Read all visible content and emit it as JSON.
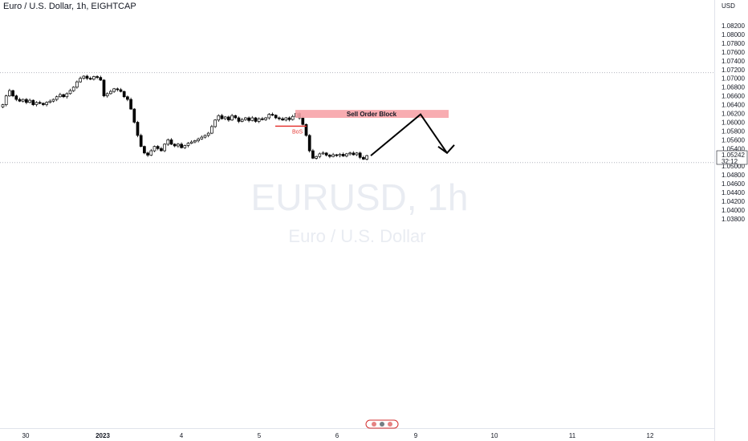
{
  "header": {
    "title": "Euro / U.S. Dollar, 1h, EIGHTCAP"
  },
  "watermark": {
    "symbol": "EURUSD, 1h",
    "name": "Euro / U.S. Dollar"
  },
  "price_scale": {
    "currency": "USD",
    "current_price": "1.05242",
    "countdown": "32:12"
  },
  "chart_data": {
    "type": "candlestick",
    "title": "Euro / U.S. Dollar, 1h, EIGHTCAP",
    "ylabel": "USD",
    "ylim": [
      1.0365,
      1.0845
    ],
    "y_ticks": [
      "1.03800",
      "1.04000",
      "1.04200",
      "1.04400",
      "1.04600",
      "1.04800",
      "1.05000",
      "1.05400",
      "1.05600",
      "1.05800",
      "1.06000",
      "1.06200",
      "1.06400",
      "1.06600",
      "1.06800",
      "1.07000",
      "1.07200",
      "1.07400",
      "1.07600",
      "1.07800",
      "1.08000",
      "1.08200"
    ],
    "x_ticks": [
      "30",
      "2023",
      "4",
      "5",
      "6",
      "9",
      "10",
      "11",
      "12"
    ],
    "horizontal_lines": [
      1.0713,
      1.0508
    ],
    "close_path": [
      1.064,
      1.066,
      1.0672,
      1.066,
      1.0652,
      1.0648,
      1.0652,
      1.0645,
      1.065,
      1.064,
      1.0645,
      1.0643,
      1.064,
      1.0645,
      1.0648,
      1.0652,
      1.0658,
      1.0663,
      1.0658,
      1.0665,
      1.0672,
      1.068,
      1.0692,
      1.07,
      1.0705,
      1.07,
      1.0698,
      1.0704,
      1.0702,
      1.0696,
      1.066,
      1.0665,
      1.067,
      1.0676,
      1.0674,
      1.067,
      1.0658,
      1.0652,
      1.063,
      1.06,
      1.057,
      1.0545,
      1.053,
      1.0525,
      1.0535,
      1.0545,
      1.054,
      1.0535,
      1.055,
      1.056,
      1.055,
      1.0546,
      1.055,
      1.0542,
      1.0547,
      1.0552,
      1.0555,
      1.0558,
      1.0562,
      1.0566,
      1.057,
      1.0575,
      1.059,
      1.0605,
      1.0615,
      1.0608,
      1.0612,
      1.0605,
      1.0615,
      1.061,
      1.0602,
      1.0606,
      1.061,
      1.0604,
      1.061,
      1.0602,
      1.0608,
      1.0606,
      1.061,
      1.0618,
      1.0616,
      1.061,
      1.0608,
      1.0605,
      1.061,
      1.0606,
      1.0613,
      1.062,
      1.061,
      1.0595,
      1.057,
      1.0535,
      1.0518,
      1.0522,
      1.0528,
      1.053,
      1.0525,
      1.0522,
      1.0526,
      1.0524,
      1.0527,
      1.0523,
      1.0528,
      1.053,
      1.0526,
      1.053,
      1.052,
      1.0516,
      1.0524
    ],
    "annotations": [
      {
        "type": "zone",
        "label": "Sell Order Block",
        "color": "#f7a3a8",
        "y_range": [
          1.061,
          1.0628
        ]
      },
      {
        "type": "level",
        "label": "BoS",
        "color": "#e53935",
        "y": 1.0591
      },
      {
        "type": "projection",
        "label": "",
        "color": "#000000",
        "path_y": [
          1.0524,
          1.0618,
          1.053
        ]
      }
    ]
  }
}
